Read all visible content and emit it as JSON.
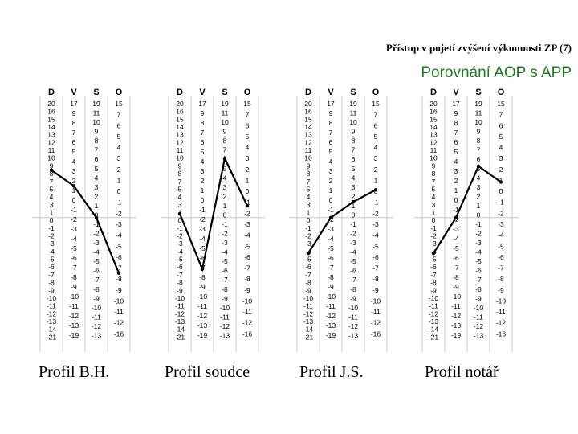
{
  "header": {
    "title": "Přístup v pojetí zvýšení výkonnosti ZP (7)",
    "subtitle": "Porovnání AOP s APP"
  },
  "column_headers": [
    "D",
    "V",
    "S",
    "O"
  ],
  "scales": [
    [
      "20",
      "16",
      "15",
      "14",
      "13",
      "12",
      "11",
      "10",
      "9",
      "8",
      "7",
      "5",
      "4",
      "3",
      "1",
      "0",
      "-1",
      "-2",
      "-3",
      "-4",
      "-5",
      "-6",
      "-7",
      "-8",
      "-9",
      "-10",
      "-11",
      "-12",
      "-13",
      "-14",
      "-21"
    ],
    [
      "17",
      "9",
      "8",
      "7",
      "6",
      "5",
      "4",
      "3",
      "2",
      "1",
      "0",
      "-1",
      "-2",
      "-3",
      "-4",
      "-5",
      "-6",
      "-7",
      "-8",
      "-9",
      "-10",
      "-11",
      "-12",
      "-13",
      "-19"
    ],
    [
      "19",
      "11",
      "10",
      "9",
      "8",
      "7",
      "6",
      "5",
      "4",
      "3",
      "2",
      "1",
      "0",
      "-1",
      "-2",
      "-3",
      "-4",
      "-5",
      "-6",
      "-7",
      "-8",
      "-9",
      "-10",
      "-11",
      "-12",
      "-13"
    ],
    [
      "15",
      "7",
      "6",
      "5",
      "4",
      "3",
      "2",
      "1",
      "0",
      "-1",
      "-2",
      "-3",
      "-4",
      "-5",
      "-6",
      "-7",
      "-8",
      "-9",
      "-10",
      "-11",
      "-12",
      "-16"
    ]
  ],
  "chart_data": [
    {
      "type": "line",
      "categories": [
        "D",
        "V",
        "S",
        "O"
      ],
      "values": [
        6.5,
        4.5,
        0.5,
        -6.5
      ],
      "caption": "Profil B.H."
    },
    {
      "type": "line",
      "categories": [
        "D",
        "V",
        "S",
        "O"
      ],
      "values": [
        1.0,
        -6.0,
        8.0,
        2.0
      ],
      "caption": "Profil soudce"
    },
    {
      "type": "line",
      "categories": [
        "D",
        "V",
        "S",
        "O"
      ],
      "values": [
        -4.0,
        0.5,
        2.5,
        4.0
      ],
      "caption": "Profil J.S."
    },
    {
      "type": "line",
      "categories": [
        "D",
        "V",
        "S",
        "O"
      ],
      "values": [
        -4.0,
        0.5,
        7.0,
        5.0
      ],
      "caption": "Profil notář"
    }
  ],
  "styles": {
    "line_color": "#000000",
    "grid_color": "#c8c8c8",
    "subtitle_color": "#1f7a1f"
  }
}
